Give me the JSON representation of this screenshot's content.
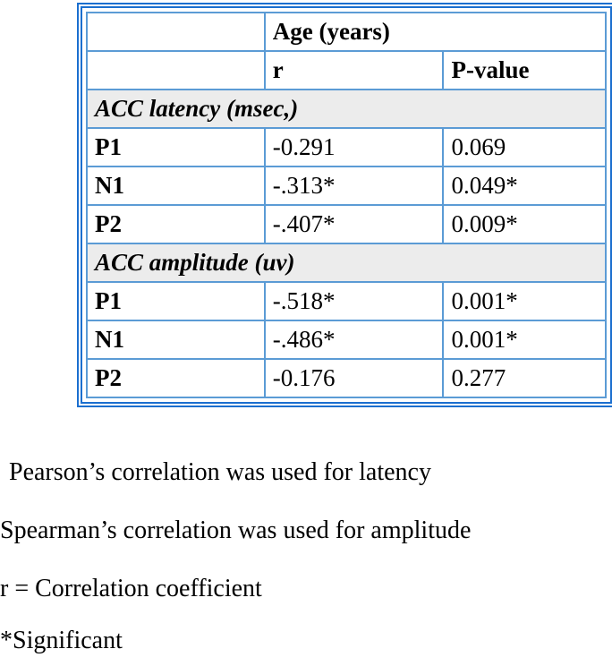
{
  "table": {
    "header": {
      "group": "Age (years)",
      "columns": [
        "r",
        "P-value"
      ]
    },
    "sections": [
      {
        "title": "ACC latency (msec,)",
        "rows": [
          [
            "P1",
            "-0.291",
            "0.069"
          ],
          [
            "N1",
            "-.313*",
            "0.049*"
          ],
          [
            "P2",
            "-.407*",
            "0.009*"
          ]
        ]
      },
      {
        "title": "ACC amplitude (uv)",
        "rows": [
          [
            "P1",
            "-.518*",
            "0.001*"
          ],
          [
            "N1",
            "-.486*",
            "0.001*"
          ],
          [
            "P2",
            "-0.176",
            "0.277"
          ]
        ]
      }
    ]
  },
  "notes": [
    "Pearson’s correlation was used for latency",
    "Spearman’s correlation was used for amplitude",
    "r = Correlation coefficient",
    "*Significant"
  ]
}
